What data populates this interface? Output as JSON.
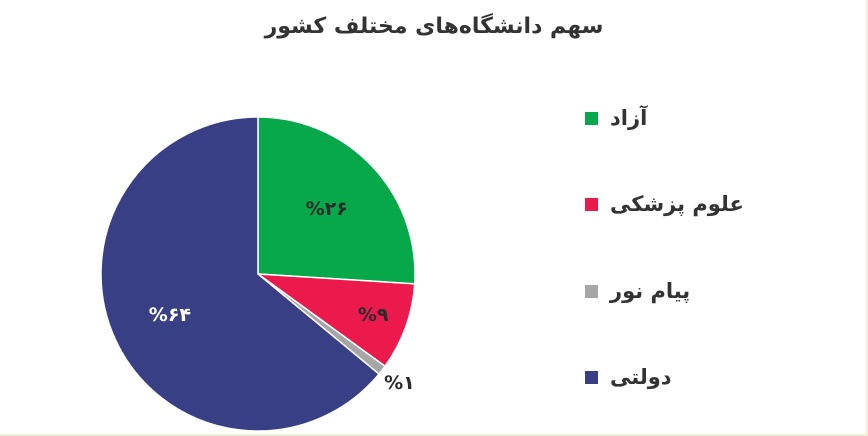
{
  "chart_data": {
    "type": "pie",
    "title": "سهم دانشگاه‌های مختلف کشور",
    "slices": [
      {
        "name": "آزاد",
        "value": 26,
        "label": "%۲۶",
        "color": "#07a84a"
      },
      {
        "name": "علوم پزشکی",
        "value": 9,
        "label": "%۹",
        "color": "#ec1a4c"
      },
      {
        "name": "پیام نور",
        "value": 1,
        "label": "%۱",
        "color": "#a6a6a6"
      },
      {
        "name": "دولتی",
        "value": 64,
        "label": "%۶۴",
        "color": "#383f84"
      }
    ],
    "legend_position": "right"
  }
}
